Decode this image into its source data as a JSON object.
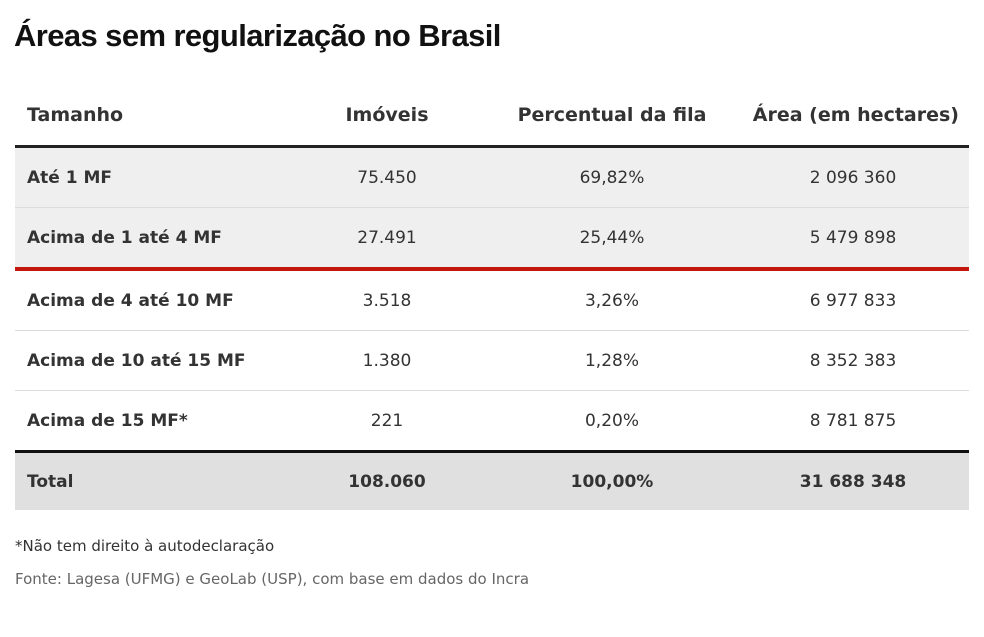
{
  "title": "Áreas sem regularização no Brasil",
  "table": {
    "headers": [
      "Tamanho",
      "Imóveis",
      "Percentual da fila",
      "Área (em hectares)"
    ],
    "rows": [
      [
        "Até 1 MF",
        "75.450",
        "69,82%",
        "2 096 360"
      ],
      [
        "Acima de 1 até 4 MF",
        "27.491",
        "25,44%",
        "5 479 898"
      ],
      [
        "Acima de 4 até 10 MF",
        "3.518",
        "3,26%",
        "6 977 833"
      ],
      [
        "Acima de 10 até 15 MF",
        "1.380",
        "1,28%",
        "8 352 383"
      ],
      [
        "Acima de 15 MF*",
        "221",
        "0,20%",
        "8 781 875"
      ]
    ],
    "total": [
      "Total",
      "108.060",
      "100,00%",
      "31 688 348"
    ]
  },
  "footnote": "*Não tem direito à autodeclaração",
  "source": "Fonte: Lagesa (UFMG) e GeoLab (USP), com base em dados do Incra",
  "colors": {
    "accent_line": "#c4170c",
    "shaded_row": "#efefef",
    "total_row": "#e0e0e0"
  }
}
